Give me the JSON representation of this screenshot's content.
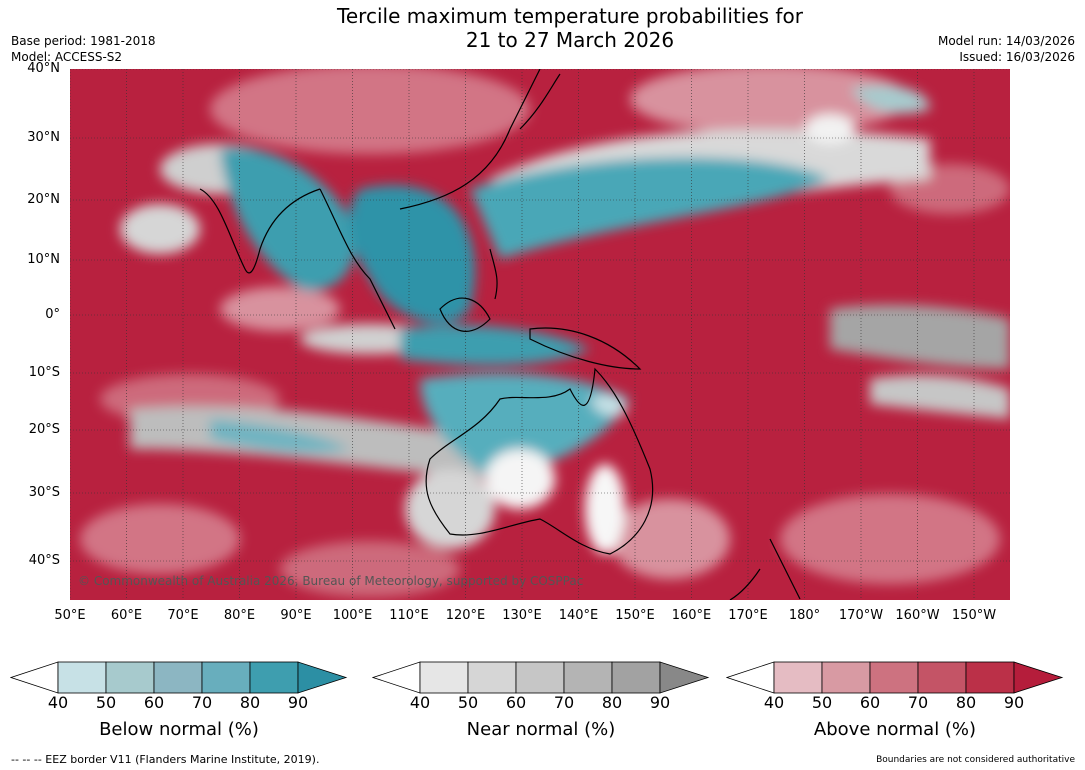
{
  "header": {
    "title_line1": "Tercile maximum temperature probabilities for",
    "title_line2": "21 to 27 March 2026",
    "base_period": "Base period: 1981-2018",
    "model": "Model: ACCESS-S2",
    "model_run": "Model run: 14/03/2026",
    "issued": "Issued: 16/03/2026"
  },
  "map": {
    "lat_labels": [
      "40°N",
      "30°N",
      "20°N",
      "10°N",
      "0°",
      "10°S",
      "20°S",
      "30°S",
      "40°S"
    ],
    "lon_labels": [
      "50°E",
      "60°E",
      "70°E",
      "80°E",
      "90°E",
      "100°E",
      "110°E",
      "120°E",
      "130°E",
      "140°E",
      "150°E",
      "160°E",
      "170°E",
      "180°",
      "170°W",
      "160°W",
      "150°W"
    ],
    "copyright": "© Commonwealth of Australia 2026, Bureau of Meteorology, supported by COSPPac"
  },
  "colorbars": [
    {
      "title": "Below normal (%)",
      "ticks": [
        "40",
        "50",
        "60",
        "70",
        "80",
        "90"
      ],
      "colors": [
        "#c7e1e6",
        "#a7cacd",
        "#8cb6c2",
        "#68aebd",
        "#3e9eaf",
        "#2c8fa4"
      ]
    },
    {
      "title": "Near normal (%)",
      "ticks": [
        "40",
        "50",
        "60",
        "70",
        "80",
        "90"
      ],
      "colors": [
        "#e6e6e6",
        "#d6d6d6",
        "#c6c6c6",
        "#b4b4b4",
        "#a2a2a2",
        "#888888"
      ]
    },
    {
      "title": "Above normal (%)",
      "ticks": [
        "40",
        "50",
        "60",
        "70",
        "80",
        "90"
      ],
      "colors": [
        "#e5bcc3",
        "#d89aa3",
        "#cd7280",
        "#c45466",
        "#bb3048",
        "#b51d3b"
      ]
    }
  ],
  "footer": {
    "eez": "--  --  -- EEZ border V11 (Flanders Marine Institute, 2019).",
    "disclaimer": "Boundaries are not considered authoritative"
  }
}
